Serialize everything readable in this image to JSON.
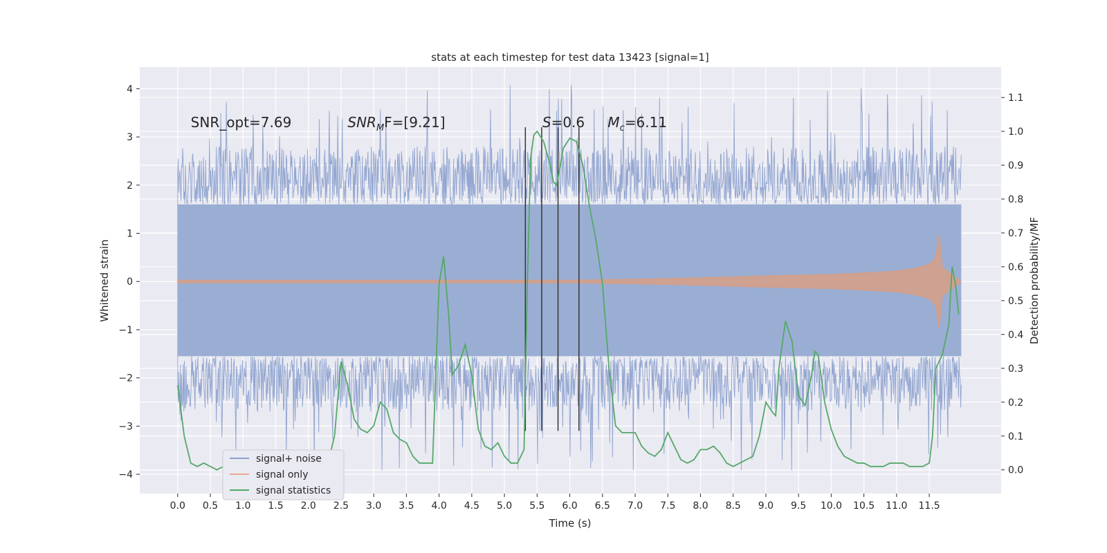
{
  "chart_data": {
    "type": "line",
    "title": "stats at each timestep for test data 13423 [signal=1]",
    "xlabel": "Time (s)",
    "ylabel": "Whitened strain",
    "y2label": "Detection probability/MF",
    "xlim": [
      -0.58,
      12.6
    ],
    "ylim": [
      -4.4,
      4.45
    ],
    "y2lim": [
      -0.07,
      1.19
    ],
    "x_ticks": [
      0.0,
      0.5,
      1.0,
      1.5,
      2.0,
      2.5,
      3.0,
      3.5,
      4.0,
      4.5,
      5.0,
      5.5,
      6.0,
      6.5,
      7.0,
      7.5,
      8.0,
      8.5,
      9.0,
      9.5,
      10.0,
      10.5,
      11.0,
      11.5
    ],
    "x_tick_labels": [
      "0.0",
      "0.5",
      "1.0",
      "1.5",
      "2.0",
      "2.5",
      "3.0",
      "3.5",
      "4.0",
      "4.5",
      "5.0",
      "5.5",
      "6.0",
      "6.5",
      "7.0",
      "7.5",
      "8.0",
      "8.5",
      "9.0",
      "9.5",
      "10.0",
      "10.5",
      "11.0",
      "11.5"
    ],
    "y_ticks": [
      -4,
      -3,
      -2,
      -1,
      0,
      1,
      2,
      3,
      4
    ],
    "y_tick_labels": [
      "−4",
      "−3",
      "−2",
      "−1",
      "0",
      "1",
      "2",
      "3",
      "4"
    ],
    "y2_ticks": [
      0.0,
      0.1,
      0.2,
      0.3,
      0.4,
      0.5,
      0.6,
      0.7,
      0.8,
      0.9,
      1.0,
      1.1
    ],
    "y2_tick_labels": [
      "0.0",
      "0.1",
      "0.2",
      "0.3",
      "0.4",
      "0.5",
      "0.6",
      "0.7",
      "0.8",
      "0.9",
      "1.0",
      "1.1"
    ],
    "grid": true,
    "legend_position": "lower-left",
    "colors": {
      "background": "#eaeaf2",
      "grid": "#ffffff",
      "signal_noise": "#8ba0cd",
      "signal_only": "#dd8452",
      "signal_statistics": "#55a868",
      "markers": "#333333"
    },
    "series": [
      {
        "name": "signal+ noise",
        "axis": "left",
        "x_range": [
          0.0,
          11.99
        ],
        "core_band": [
          -1.55,
          1.6
        ],
        "typical_extent": [
          -2.7,
          2.8
        ],
        "peak_min": -3.95,
        "peak_max": 4.1
      },
      {
        "name": "signal only",
        "axis": "left",
        "envelope_x": [
          0.0,
          2.0,
          4.0,
          6.0,
          7.0,
          8.0,
          9.0,
          10.0,
          10.5,
          11.0,
          11.3,
          11.5,
          11.6,
          11.65,
          11.7,
          11.99
        ],
        "envelope_amp": [
          0.03,
          0.03,
          0.03,
          0.03,
          0.05,
          0.08,
          0.12,
          0.15,
          0.18,
          0.22,
          0.28,
          0.36,
          0.5,
          1.05,
          0.3,
          0.0
        ]
      },
      {
        "name": "signal statistics",
        "axis": "right",
        "x": [
          0.0,
          0.1,
          0.2,
          0.3,
          0.4,
          0.5,
          0.6,
          0.7,
          0.8,
          0.9,
          1.0,
          1.1,
          1.2,
          1.3,
          1.4,
          1.5,
          1.6,
          1.7,
          1.8,
          1.9,
          2.0,
          2.1,
          2.2,
          2.3,
          2.4,
          2.5,
          2.6,
          2.7,
          2.8,
          2.9,
          3.0,
          3.1,
          3.2,
          3.3,
          3.4,
          3.5,
          3.6,
          3.7,
          3.8,
          3.9,
          4.0,
          4.07,
          4.15,
          4.2,
          4.3,
          4.4,
          4.5,
          4.6,
          4.7,
          4.8,
          4.9,
          5.0,
          5.1,
          5.2,
          5.3,
          5.35,
          5.4,
          5.45,
          5.5,
          5.6,
          5.7,
          5.75,
          5.8,
          5.9,
          6.0,
          6.1,
          6.2,
          6.3,
          6.4,
          6.5,
          6.6,
          6.7,
          6.8,
          6.9,
          7.0,
          7.1,
          7.2,
          7.3,
          7.4,
          7.5,
          7.6,
          7.7,
          7.8,
          7.9,
          8.0,
          8.1,
          8.2,
          8.3,
          8.4,
          8.5,
          8.6,
          8.7,
          8.8,
          8.9,
          9.0,
          9.1,
          9.15,
          9.2,
          9.3,
          9.4,
          9.5,
          9.6,
          9.7,
          9.75,
          9.8,
          9.9,
          10.0,
          10.1,
          10.2,
          10.3,
          10.4,
          10.5,
          10.6,
          10.7,
          10.8,
          10.9,
          11.0,
          11.1,
          11.2,
          11.3,
          11.4,
          11.5,
          11.55,
          11.6,
          11.7,
          11.8,
          11.85,
          11.9,
          11.95
        ],
        "values": [
          0.25,
          0.1,
          0.02,
          0.01,
          0.02,
          0.01,
          0.0,
          0.01,
          0.0,
          0.0,
          0.01,
          0.01,
          0.01,
          0.02,
          0.01,
          0.02,
          0.02,
          0.01,
          0.01,
          0.02,
          0.02,
          0.02,
          0.01,
          0.02,
          0.1,
          0.32,
          0.25,
          0.15,
          0.12,
          0.11,
          0.13,
          0.2,
          0.18,
          0.11,
          0.09,
          0.08,
          0.04,
          0.02,
          0.02,
          0.02,
          0.55,
          0.63,
          0.45,
          0.28,
          0.31,
          0.37,
          0.28,
          0.12,
          0.07,
          0.06,
          0.08,
          0.04,
          0.02,
          0.02,
          0.06,
          0.55,
          0.92,
          0.99,
          1.0,
          0.97,
          0.9,
          0.85,
          0.84,
          0.95,
          0.98,
          0.97,
          0.9,
          0.78,
          0.68,
          0.55,
          0.3,
          0.13,
          0.11,
          0.11,
          0.11,
          0.07,
          0.05,
          0.04,
          0.06,
          0.11,
          0.07,
          0.03,
          0.02,
          0.03,
          0.06,
          0.06,
          0.07,
          0.05,
          0.02,
          0.01,
          0.02,
          0.03,
          0.04,
          0.1,
          0.2,
          0.17,
          0.16,
          0.3,
          0.44,
          0.38,
          0.22,
          0.19,
          0.28,
          0.35,
          0.34,
          0.2,
          0.12,
          0.07,
          0.04,
          0.03,
          0.02,
          0.02,
          0.01,
          0.01,
          0.01,
          0.02,
          0.02,
          0.02,
          0.01,
          0.01,
          0.01,
          0.02,
          0.1,
          0.3,
          0.34,
          0.43,
          0.6,
          0.55,
          0.46
        ]
      }
    ],
    "vertical_markers": {
      "x": [
        5.32,
        5.57,
        5.82,
        6.14
      ],
      "y_range": [
        -3.1,
        3.2
      ]
    },
    "annotations": [
      {
        "id": "snr-opt",
        "text": "SNR_opt=7.69",
        "x": 0.2,
        "y": 3.2
      },
      {
        "id": "snr-mf",
        "text": "SNR",
        "sub": "M",
        "rest": "F=[9.21]",
        "x": 2.6,
        "y": 3.2
      },
      {
        "id": "s-val",
        "text": "S",
        "rest": "=0.6",
        "x": 5.58,
        "y": 3.2
      },
      {
        "id": "mc-val",
        "text": "M",
        "sub": "c",
        "rest": "=6.11",
        "x": 6.58,
        "y": 3.2
      }
    ]
  }
}
